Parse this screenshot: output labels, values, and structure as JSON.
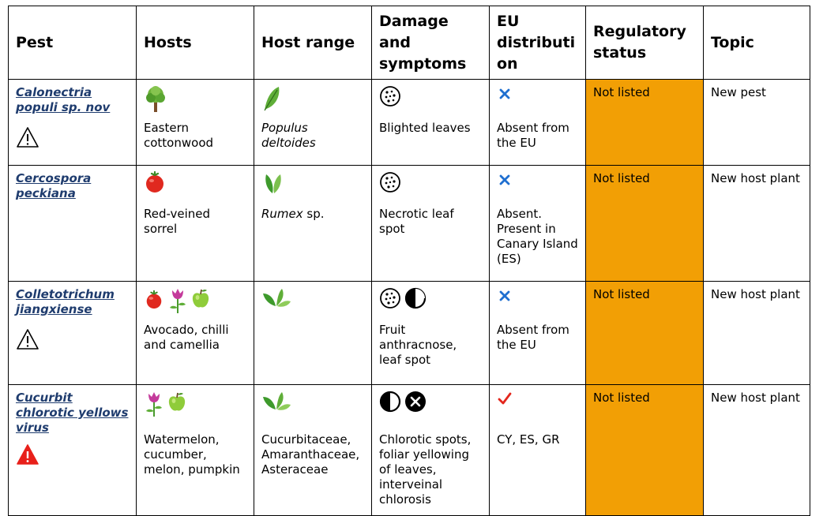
{
  "headers": [
    "Pest",
    "Hosts",
    "Host range",
    "Damage and symptoms",
    "EU distributi on",
    "Regulatory status",
    "Topic"
  ],
  "rows": [
    {
      "pest": "Calonectria populi sp. nov",
      "pest_icon": "warning-outline-icon",
      "host_icons": [
        "tree-icon"
      ],
      "hosts": "Eastern cottonwood",
      "range_icons": [
        "leaf-icon"
      ],
      "range_italic": "Populus deltoides",
      "range_text": "",
      "damage_icons": [
        "spotted-circle-icon"
      ],
      "damage": "Blighted leaves",
      "eu_icon": "cross-icon",
      "eu": "Absent from the EU",
      "reg": "Not listed",
      "topic": "New pest"
    },
    {
      "pest": "Cercospora peckiana",
      "pest_icon": "",
      "host_icons": [
        "tomato-icon"
      ],
      "hosts": "Red-veined sorrel",
      "range_icons": [
        "leaves-icon"
      ],
      "range_italic": "Rumex",
      "range_text": " sp.",
      "damage_icons": [
        "spotted-circle-icon"
      ],
      "damage": "Necrotic leaf spot",
      "eu_icon": "cross-icon",
      "eu": "Absent. Present in Canary Island (ES)",
      "reg": "Not listed",
      "topic": "New host plant"
    },
    {
      "pest": "Colletotrichum jiangxiense",
      "pest_icon": "warning-outline-icon",
      "host_icons": [
        "tomato-icon",
        "flower-icon",
        "apple-icon"
      ],
      "hosts": "Avocado, chilli and camellia",
      "range_icons": [
        "leaves-icon"
      ],
      "range_italic": "",
      "range_text": "",
      "damage_icons": [
        "spotted-circle-icon",
        "half-circle-icon"
      ],
      "damage": "Fruit anthracnose, leaf spot",
      "eu_icon": "cross-icon",
      "eu": "Absent from the EU",
      "reg": "Not listed",
      "topic": "New host plant"
    },
    {
      "pest": "Cucurbit chlorotic yellows virus",
      "pest_icon": "warning-red-icon",
      "host_icons": [
        "flower-icon",
        "apple-icon"
      ],
      "hosts": "Watermelon, cucumber, melon, pumpkin",
      "range_icons": [
        "leaves-icon"
      ],
      "range_italic": "",
      "range_text": "Cucurbitaceae, Amaranthaceae, Asteraceae",
      "damage_icons": [
        "half-circle-icon",
        "x-circle-icon"
      ],
      "damage": "Chlorotic spots, foliar yellowing of leaves, interveinal chlorosis",
      "eu_icon": "check-icon",
      "eu": "CY, ES, GR",
      "reg": "Not listed",
      "topic": "New host plant"
    }
  ]
}
